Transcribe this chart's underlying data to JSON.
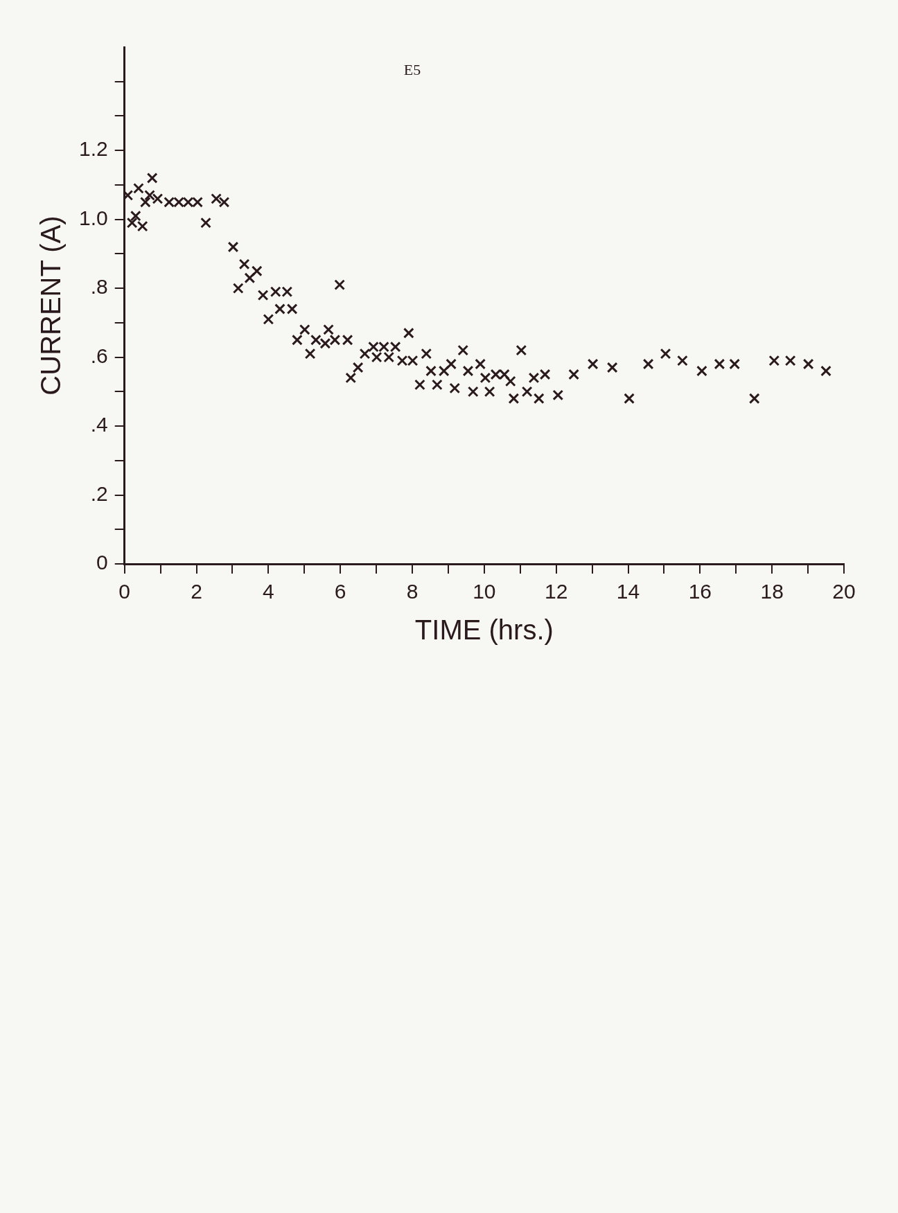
{
  "chart_data": {
    "type": "scatter",
    "xlabel": "TIME (hrs.)",
    "ylabel": "CURRENT (A)",
    "annotations": [
      "E5"
    ],
    "xlim": [
      0,
      20
    ],
    "xticks": [
      0,
      {
        "value": 1,
        "label": null
      },
      2,
      {
        "value": 3,
        "label": null
      },
      4,
      {
        "value": 5,
        "label": null
      },
      6,
      {
        "value": 7,
        "label": null
      },
      8,
      {
        "value": 9,
        "label": null
      },
      10,
      {
        "value": 11,
        "label": null
      },
      12,
      {
        "value": 13,
        "label": null
      },
      14,
      {
        "value": 15,
        "label": null
      },
      16,
      {
        "value": 17,
        "label": null
      },
      18,
      {
        "value": 19,
        "label": null
      },
      20
    ],
    "ylim": [
      0,
      1.5
    ],
    "yticks": [
      0,
      {
        "value": 0.1,
        "label": null
      },
      {
        "value": 0.2,
        "label": ".2"
      },
      {
        "value": 0.3,
        "label": null
      },
      {
        "value": 0.4,
        "label": ".4"
      },
      {
        "value": 0.5,
        "label": null
      },
      {
        "value": 0.6,
        "label": ".6"
      },
      {
        "value": 0.7,
        "label": null
      },
      {
        "value": 0.8,
        "label": ".8"
      },
      {
        "value": 0.9,
        "label": null
      },
      {
        "value": 1.0,
        "label": "1.0"
      },
      {
        "value": 1.1,
        "label": null
      },
      1.2,
      {
        "value": 1.3,
        "label": null
      },
      {
        "value": 1.4,
        "label": null
      }
    ],
    "grid": false,
    "legend": false,
    "marker": "cross",
    "series": [
      {
        "color": "#2a1a1e",
        "x": [
          19.5,
          19.01,
          18.51,
          18.06,
          17.51,
          16.96,
          16.54,
          16.05,
          15.51,
          15.04,
          14.56,
          14.03,
          13.56,
          13.02,
          12.49,
          12.05,
          11.69,
          11.52,
          11.38,
          11.19,
          11.03,
          10.82,
          10.73,
          10.56,
          10.32,
          10.15,
          10.03,
          9.89,
          9.69,
          9.55,
          9.41,
          9.18,
          9.08,
          8.88,
          8.69,
          8.52,
          8.39,
          8.21,
          8.01,
          7.9,
          7.72,
          7.53,
          7.35,
          7.21,
          7.01,
          6.92,
          6.68,
          6.49,
          6.29,
          6.2,
          5.98,
          5.85,
          5.67,
          5.58,
          5.32,
          5.16,
          5.01,
          4.8,
          4.66,
          4.52,
          4.32,
          4.2,
          4.0,
          3.85,
          3.68,
          3.48,
          3.33,
          3.16,
          3.02,
          2.77,
          2.55,
          2.26,
          2.03,
          1.77,
          1.51,
          1.24,
          0.92,
          0.77,
          0.7,
          0.58,
          0.5,
          0.39,
          0.31,
          0.21,
          0.09
        ],
        "values": [
          0.56,
          0.58,
          0.59,
          0.59,
          0.48,
          0.58,
          0.58,
          0.56,
          0.59,
          0.61,
          0.58,
          0.48,
          0.57,
          0.58,
          0.55,
          0.49,
          0.55,
          0.48,
          0.54,
          0.5,
          0.62,
          0.48,
          0.53,
          0.55,
          0.55,
          0.5,
          0.54,
          0.58,
          0.5,
          0.56,
          0.62,
          0.51,
          0.58,
          0.56,
          0.52,
          0.56,
          0.61,
          0.52,
          0.59,
          0.67,
          0.59,
          0.63,
          0.6,
          0.63,
          0.6,
          0.63,
          0.61,
          0.57,
          0.54,
          0.65,
          0.81,
          0.65,
          0.68,
          0.64,
          0.65,
          0.61,
          0.68,
          0.65,
          0.74,
          0.79,
          0.74,
          0.79,
          0.71,
          0.78,
          0.85,
          0.83,
          0.87,
          0.8,
          0.92,
          1.05,
          1.06,
          0.99,
          1.05,
          1.05,
          1.05,
          1.05,
          1.06,
          1.12,
          1.07,
          1.05,
          0.98,
          1.09,
          1.01,
          0.99,
          1.07
        ]
      }
    ]
  }
}
